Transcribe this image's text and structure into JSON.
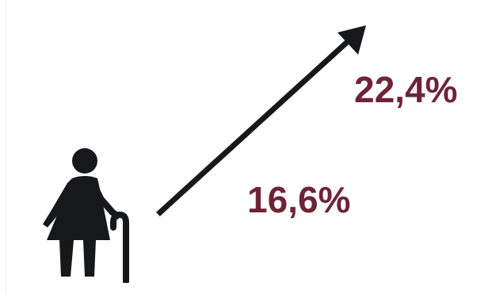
{
  "icons": {
    "figure": "elderly-person-with-cane-icon",
    "arrow": "upward-trend-arrow-icon"
  },
  "colors": {
    "value_text": "#6e2437",
    "icon_fill": "#161819"
  },
  "values": {
    "high": "22,4%",
    "low": "16,6%"
  }
}
